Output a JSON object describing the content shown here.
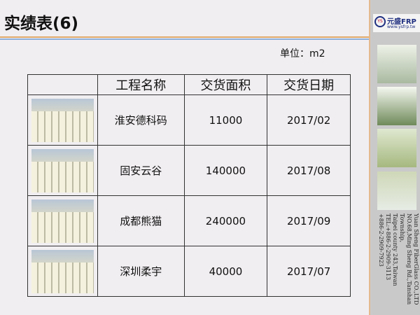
{
  "title": "实绩表(6)",
  "unit": "单位：m2",
  "table": {
    "headers": [
      "",
      "工程名称",
      "交货面积",
      "交货日期"
    ],
    "rows": [
      {
        "name": "淮安德科码",
        "area": "11000",
        "date": "2017/02"
      },
      {
        "name": "固安云谷",
        "area": "140000",
        "date": "2017/08"
      },
      {
        "name": "成都熊猫",
        "area": "240000",
        "date": "2017/09"
      },
      {
        "name": "深圳柔宇",
        "area": "40000",
        "date": "2017/07"
      }
    ]
  },
  "sidebar": {
    "logo_name": "元盛FRP",
    "logo_mark": "YS",
    "logo_url": "www.ysfrp.tw",
    "company": "Yuan Sheng FiberGlass CO.,LTD",
    "address1": "NO.68,Ming Sheng Rd.,Tanshan Township,",
    "address2": "Taipei county 243,Taiwan",
    "tel": "TEL:+886-2-2909-3113",
    "fax": "+886-2-2909-7923"
  },
  "colors": {
    "accent_orange": "#e0a86a",
    "accent_blue": "#8fb0dc"
  }
}
